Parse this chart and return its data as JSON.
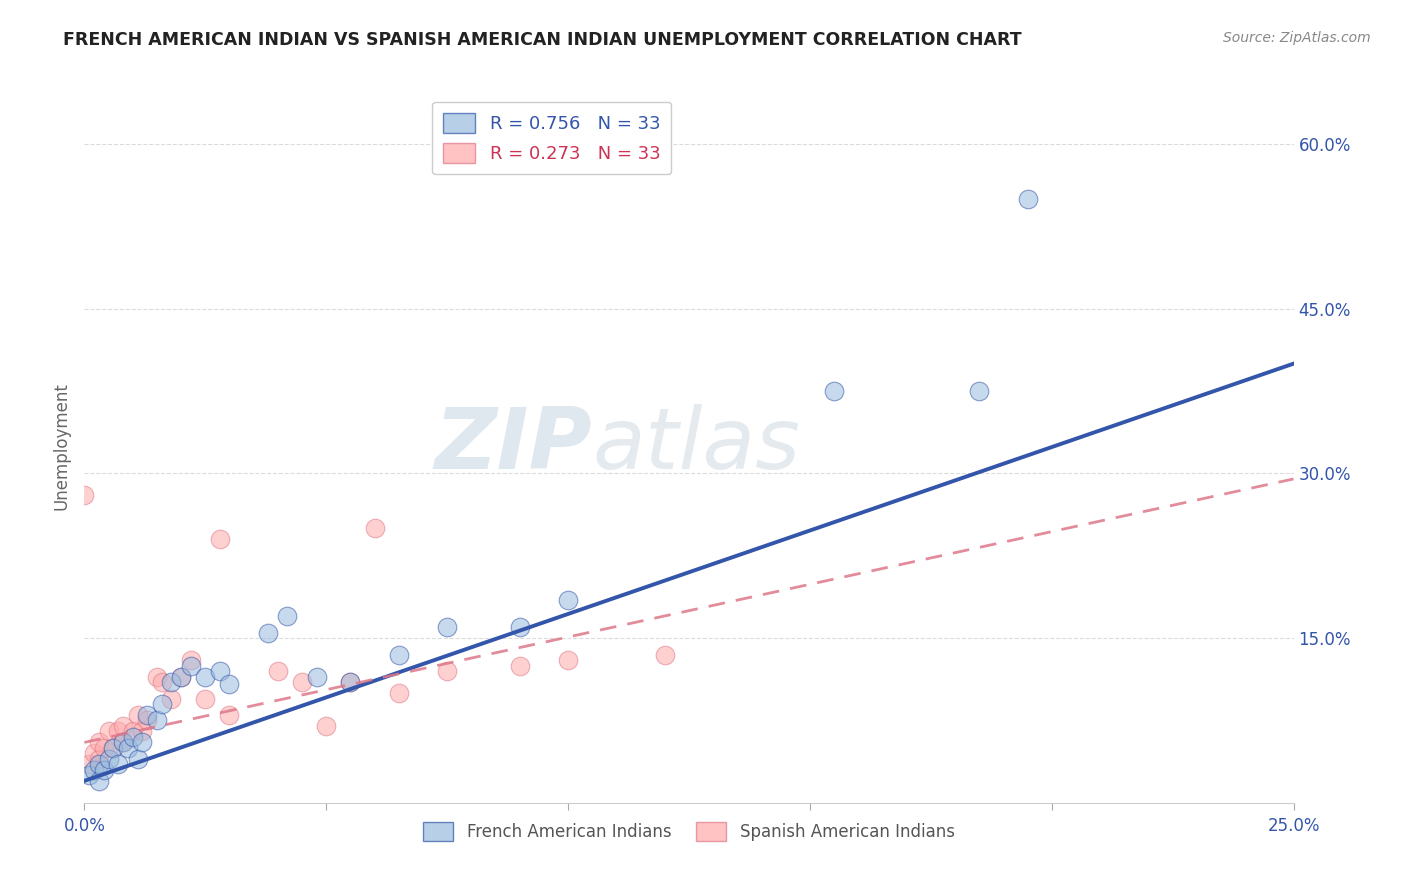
{
  "title": "FRENCH AMERICAN INDIAN VS SPANISH AMERICAN INDIAN UNEMPLOYMENT CORRELATION CHART",
  "source": "Source: ZipAtlas.com",
  "xlabel": "",
  "ylabel": "Unemployment",
  "xlim": [
    0.0,
    0.25
  ],
  "ylim": [
    0.0,
    0.65
  ],
  "xticks": [
    0.0,
    0.05,
    0.1,
    0.15,
    0.2,
    0.25
  ],
  "xticklabels": [
    "0.0%",
    "",
    "",
    "",
    "",
    "25.0%"
  ],
  "yticks_right": [
    0.0,
    0.15,
    0.3,
    0.45,
    0.6
  ],
  "yticklabels_right": [
    "",
    "15.0%",
    "30.0%",
    "45.0%",
    "60.0%"
  ],
  "R_blue": 0.756,
  "N_blue": 33,
  "R_pink": 0.273,
  "N_pink": 33,
  "blue_color": "#99BBDD",
  "pink_color": "#FFAAAA",
  "line_blue": "#3355AA",
  "line_pink": "#DD7788",
  "legend_label_blue": "French American Indians",
  "legend_label_pink": "Spanish American Indians",
  "blue_x": [
    0.001,
    0.002,
    0.003,
    0.003,
    0.004,
    0.005,
    0.006,
    0.007,
    0.008,
    0.009,
    0.01,
    0.011,
    0.012,
    0.013,
    0.015,
    0.016,
    0.018,
    0.02,
    0.022,
    0.025,
    0.028,
    0.03,
    0.038,
    0.042,
    0.048,
    0.055,
    0.065,
    0.075,
    0.09,
    0.1,
    0.155,
    0.185,
    0.195
  ],
  "blue_y": [
    0.025,
    0.03,
    0.02,
    0.035,
    0.03,
    0.04,
    0.05,
    0.035,
    0.055,
    0.05,
    0.06,
    0.04,
    0.055,
    0.08,
    0.075,
    0.09,
    0.11,
    0.115,
    0.125,
    0.115,
    0.12,
    0.108,
    0.155,
    0.17,
    0.115,
    0.11,
    0.135,
    0.16,
    0.16,
    0.185,
    0.375,
    0.375,
    0.55
  ],
  "pink_x": [
    0.0,
    0.001,
    0.002,
    0.003,
    0.003,
    0.004,
    0.005,
    0.006,
    0.007,
    0.008,
    0.008,
    0.01,
    0.011,
    0.012,
    0.013,
    0.015,
    0.016,
    0.018,
    0.02,
    0.022,
    0.025,
    0.028,
    0.03,
    0.04,
    0.045,
    0.05,
    0.055,
    0.06,
    0.065,
    0.075,
    0.09,
    0.1,
    0.12
  ],
  "pink_y": [
    0.28,
    0.035,
    0.045,
    0.04,
    0.055,
    0.05,
    0.065,
    0.05,
    0.065,
    0.055,
    0.07,
    0.065,
    0.08,
    0.065,
    0.075,
    0.115,
    0.11,
    0.095,
    0.115,
    0.13,
    0.095,
    0.24,
    0.08,
    0.12,
    0.11,
    0.07,
    0.11,
    0.25,
    0.1,
    0.12,
    0.125,
    0.13,
    0.135
  ],
  "blue_line_x0": 0.0,
  "blue_line_y0": 0.02,
  "blue_line_x1": 0.25,
  "blue_line_y1": 0.4,
  "pink_line_x0": 0.0,
  "pink_line_y0": 0.055,
  "pink_line_x1": 0.25,
  "pink_line_y1": 0.295,
  "watermark_zip": "ZIP",
  "watermark_atlas": "atlas",
  "background_color": "#FFFFFF",
  "grid_color": "#CCCCCC"
}
